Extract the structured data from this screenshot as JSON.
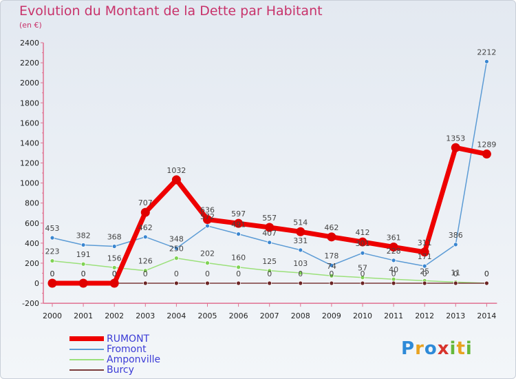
{
  "header": {
    "title": "Evolution du Montant de la Dette par Habitant",
    "subtitle": "(en €)"
  },
  "logo": {
    "text": "Proxiti",
    "colors": [
      "#2e8ad8",
      "#e8a220",
      "#66b83a",
      "#d8342c"
    ]
  },
  "chart_data": {
    "type": "line",
    "title": "Evolution du Montant de la Dette par Habitant",
    "ylabel": "(en €)",
    "xlabel": "",
    "ylim": [
      -200,
      2400
    ],
    "yticks": [
      -200,
      0,
      200,
      400,
      600,
      800,
      1000,
      1200,
      1400,
      1600,
      1800,
      2000,
      2200,
      2400
    ],
    "grid": false,
    "legend_position": "bottom-left",
    "x": [
      "2000",
      "2001",
      "2002",
      "2003",
      "2004",
      "2005",
      "2006",
      "2007",
      "2008",
      "2009",
      "2010",
      "2011",
      "2012",
      "2013",
      "2014"
    ],
    "series": [
      {
        "name": "Fromont",
        "color": "#5b9bd5",
        "marker": "#3a86d0",
        "width": 1.5,
        "values": [
          453,
          382,
          368,
          462,
          348,
          572,
          491,
          407,
          331,
          178,
          301,
          228,
          171,
          386,
          2212
        ],
        "labels": [
          "453",
          "382",
          "368",
          "462",
          "348",
          "572",
          "491",
          "407",
          "331",
          "178",
          "301",
          "228",
          "171",
          "386",
          "2212"
        ]
      },
      {
        "name": "Amponville",
        "color": "#9be07a",
        "marker": "#7fd254",
        "width": 1.5,
        "values": [
          223,
          191,
          156,
          126,
          250,
          202,
          160,
          125,
          103,
          74,
          57,
          40,
          25,
          11,
          0
        ],
        "labels": [
          "223",
          "191",
          "156",
          "126",
          "250",
          "202",
          "160",
          "125",
          "103",
          "74",
          "57",
          "40",
          "25",
          "11",
          "0"
        ]
      },
      {
        "name": "Burcy",
        "color": "#7a3a3a",
        "marker": "#6b2424",
        "width": 1.5,
        "values": [
          0,
          0,
          0,
          0,
          0,
          0,
          0,
          0,
          0,
          0,
          0,
          0,
          0,
          0,
          0
        ],
        "labels": [
          "0",
          "0",
          "0",
          "0",
          "0",
          "0",
          "0",
          "0",
          "0",
          "0",
          "0",
          "0",
          "0",
          "0",
          "0"
        ]
      },
      {
        "name": "RUMONT",
        "color": "#ee0000",
        "marker": "#e00000",
        "width": 7,
        "values": [
          0,
          0,
          0,
          707,
          1032,
          636,
          597,
          557,
          514,
          462,
          412,
          361,
          311,
          1353,
          1289
        ],
        "labels": [
          "0",
          "0",
          "0",
          "707",
          "1032",
          "636",
          "597",
          "557",
          "514",
          "462",
          "412",
          "361",
          "311",
          "1353",
          "1289"
        ]
      }
    ]
  },
  "legend": [
    {
      "name": "RUMONT",
      "color": "#ee0000"
    },
    {
      "name": "Fromont",
      "color": "#5b9bd5"
    },
    {
      "name": "Amponville",
      "color": "#9be07a"
    },
    {
      "name": "Burcy",
      "color": "#7a3a3a"
    }
  ]
}
